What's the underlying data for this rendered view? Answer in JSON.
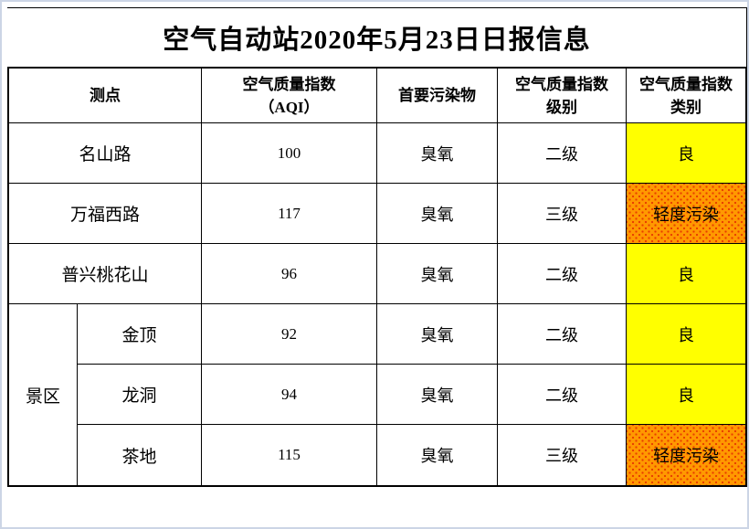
{
  "page_title": "空气自动站2020年5月23日日报信息",
  "table": {
    "columns": {
      "site": "测点",
      "aqi": "空气质量指数\n（AQI）",
      "pollutant": "首要污染物",
      "level": "空气质量指数\n级别",
      "category": "空气质量指数\n类别"
    },
    "group_label": "景区",
    "rows": [
      {
        "site": "名山路",
        "aqi": "100",
        "pollutant": "臭氧",
        "level": "二级",
        "category": "良",
        "category_color": "#FFFF00",
        "category_pattern": false
      },
      {
        "site": "万福西路",
        "aqi": "117",
        "pollutant": "臭氧",
        "level": "三级",
        "category": "轻度污染",
        "category_color": "#FF9900",
        "category_pattern": true
      },
      {
        "site": "普兴桃花山",
        "aqi": "96",
        "pollutant": "臭氧",
        "level": "二级",
        "category": "良",
        "category_color": "#FFFF00",
        "category_pattern": false
      },
      {
        "site": "金顶",
        "aqi": "92",
        "pollutant": "臭氧",
        "level": "二级",
        "category": "良",
        "category_color": "#FFFF00",
        "category_pattern": false
      },
      {
        "site": "龙洞",
        "aqi": "94",
        "pollutant": "臭氧",
        "level": "二级",
        "category": "良",
        "category_color": "#FFFF00",
        "category_pattern": false
      },
      {
        "site": "茶地",
        "aqi": "115",
        "pollutant": "臭氧",
        "level": "三级",
        "category": "轻度污染",
        "category_color": "#FF9900",
        "category_pattern": true
      }
    ]
  },
  "colors": {
    "good_bg": "#FFFF00",
    "light_pollution_bg": "#FF9900",
    "light_pollution_dot": "#E83D00",
    "page_edge": "#CCD5E5"
  }
}
